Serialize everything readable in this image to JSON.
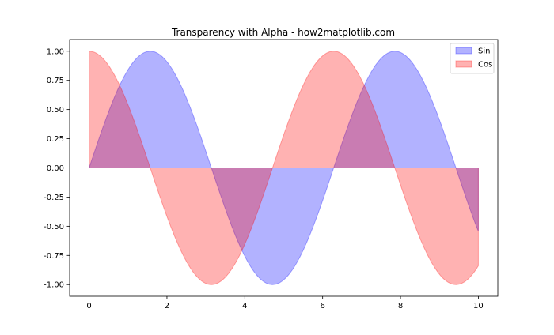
{
  "chart_data": {
    "type": "area",
    "title": "Transparency with Alpha - how2matplotlib.com",
    "xlabel": "",
    "ylabel": "",
    "xlim": [
      -0.5,
      10.5
    ],
    "ylim": [
      -1.1,
      1.1
    ],
    "x_ticks": [
      0,
      2,
      4,
      6,
      8,
      10
    ],
    "x_tick_labels": [
      "0",
      "2",
      "4",
      "6",
      "8",
      "10"
    ],
    "y_ticks": [
      -1.0,
      -0.75,
      -0.5,
      -0.25,
      0.0,
      0.25,
      0.5,
      0.75,
      1.0
    ],
    "y_tick_labels": [
      "-1.00",
      "-0.75",
      "-0.50",
      "-0.25",
      "0.00",
      "0.25",
      "0.50",
      "0.75",
      "1.00"
    ],
    "grid": false,
    "legend_position": "top-right",
    "x_start": 0,
    "x_end": 10,
    "baseline": 0,
    "series": [
      {
        "name": "Sin",
        "function": "sin",
        "color": "#0000ff",
        "alpha": 0.3,
        "key_points": [
          [
            0,
            0
          ],
          [
            1.571,
            1
          ],
          [
            3.142,
            0
          ],
          [
            4.712,
            -1
          ],
          [
            6.283,
            0
          ],
          [
            7.854,
            1
          ],
          [
            9.425,
            0
          ],
          [
            10,
            -0.544
          ]
        ]
      },
      {
        "name": "Cos",
        "function": "cos",
        "color": "#ff0000",
        "alpha": 0.3,
        "key_points": [
          [
            0,
            1
          ],
          [
            1.571,
            0
          ],
          [
            3.142,
            -1
          ],
          [
            4.712,
            0
          ],
          [
            6.283,
            1
          ],
          [
            7.854,
            0
          ],
          [
            9.425,
            -1
          ],
          [
            10,
            -0.839
          ]
        ]
      }
    ]
  }
}
